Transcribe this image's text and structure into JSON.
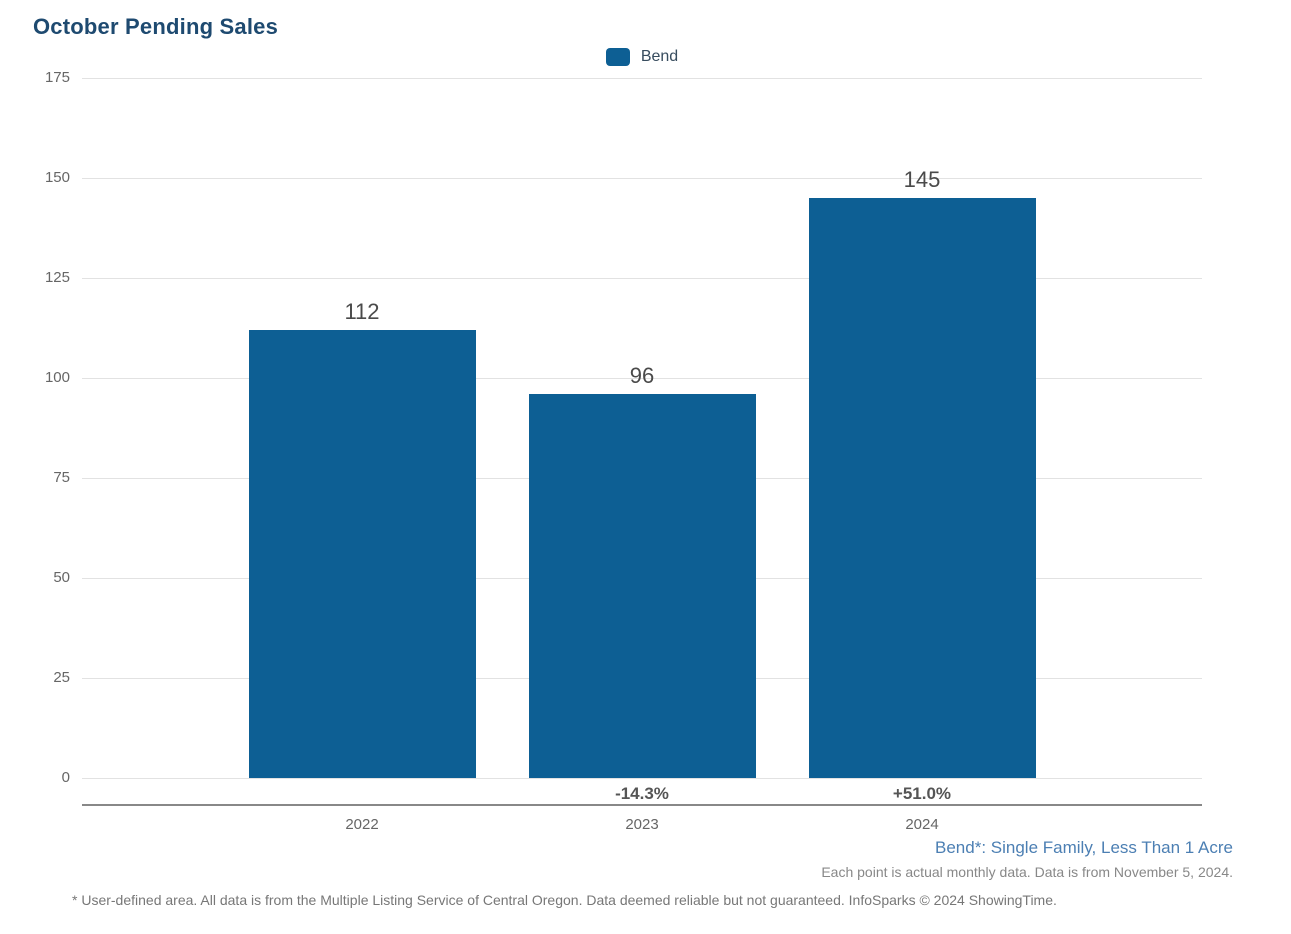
{
  "title": "October Pending Sales",
  "legend": {
    "label": "Bend"
  },
  "colors": {
    "bar": "#0d5f94",
    "title": "#1e4a70",
    "legend_text": "#374c5e",
    "axis_tick_label": "#666666",
    "value_label": "#4a4a4a",
    "pct_label": "#555555",
    "gridline": "#e2e2e2",
    "axis_line": "#888888",
    "footnote_blue": "#4c7fb3",
    "footnote_gray": "#888888",
    "footnote_bottom": "#777777"
  },
  "chart_data": {
    "type": "bar",
    "categories": [
      "2022",
      "2023",
      "2024"
    ],
    "series": [
      {
        "name": "Bend",
        "values": [
          112,
          96,
          145
        ]
      }
    ],
    "value_labels": [
      "112",
      "96",
      "145"
    ],
    "pct_change_labels": [
      "",
      "-14.3%",
      "+51.0%"
    ],
    "title": "October Pending Sales",
    "xlabel": "",
    "ylabel": "",
    "ylim": [
      0,
      175
    ],
    "yticks": [
      0,
      25,
      50,
      75,
      100,
      125,
      150,
      175
    ],
    "grid": true,
    "legend_position": "top-center"
  },
  "footnotes": {
    "series_note": "Bend*: Single Family, Less Than 1 Acre",
    "data_note": "Each point is actual monthly data. Data is from November 5, 2024.",
    "disclaimer": "* User-defined area. All data is from the Multiple Listing Service of Central Oregon. Data deemed reliable but not guaranteed. InfoSparks © 2024 ShowingTime."
  }
}
